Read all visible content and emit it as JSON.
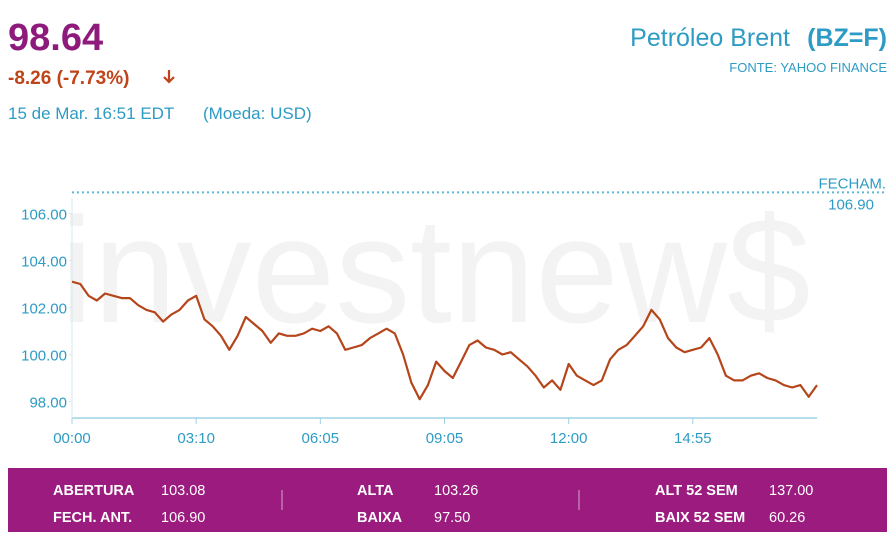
{
  "header": {
    "price": "98.64",
    "change": "-8.26 (-7.73%)",
    "date": "15 de Mar. 16:51 EDT",
    "currency": "(Moeda: USD)",
    "name": "Petróleo Brent",
    "ticker": "(BZ=F)",
    "source": "FONTE: YAHOO FINANCE"
  },
  "watermark": "investnew$",
  "chart_data": {
    "type": "line",
    "categories": [
      "00:00",
      null,
      null,
      null,
      null,
      null,
      null,
      null,
      null,
      null,
      null,
      null,
      null,
      null,
      null,
      "03:10",
      null,
      null,
      null,
      null,
      null,
      null,
      null,
      null,
      null,
      null,
      null,
      null,
      null,
      null,
      "06:05",
      null,
      null,
      null,
      null,
      null,
      null,
      null,
      null,
      null,
      null,
      null,
      null,
      null,
      null,
      "09:05",
      null,
      null,
      null,
      null,
      null,
      null,
      null,
      null,
      null,
      null,
      null,
      null,
      null,
      null,
      "12:00",
      null,
      null,
      null,
      null,
      null,
      null,
      null,
      null,
      null,
      null,
      null,
      null,
      null,
      null,
      "14:55",
      null,
      null,
      null,
      null,
      null,
      null,
      null,
      null,
      null,
      null,
      null,
      null,
      null,
      null,
      null
    ],
    "series": [
      {
        "color": "#b5451b",
        "values": [
          103.1,
          103.0,
          102.5,
          102.3,
          102.6,
          102.5,
          102.4,
          102.4,
          102.1,
          101.9,
          101.8,
          101.4,
          101.7,
          101.9,
          102.3,
          102.5,
          101.5,
          101.2,
          100.8,
          100.2,
          100.8,
          101.6,
          101.3,
          101.0,
          100.5,
          100.9,
          100.8,
          100.8,
          100.9,
          101.1,
          101.0,
          101.2,
          100.9,
          100.2,
          100.3,
          100.4,
          100.7,
          100.9,
          101.1,
          100.9,
          100.0,
          98.8,
          98.1,
          98.7,
          99.7,
          99.3,
          99.0,
          99.7,
          100.4,
          100.6,
          100.3,
          100.2,
          100.0,
          100.1,
          99.8,
          99.5,
          99.1,
          98.6,
          98.9,
          98.5,
          99.6,
          99.1,
          98.9,
          98.7,
          98.9,
          99.8,
          100.2,
          100.4,
          100.8,
          101.2,
          101.9,
          101.5,
          100.7,
          100.3,
          100.1,
          100.2,
          100.3,
          100.7,
          100.0,
          99.1,
          98.9,
          98.9,
          99.1,
          99.2,
          99.0,
          98.9,
          98.7,
          98.6,
          98.7,
          98.2,
          98.7
        ]
      }
    ],
    "ylim": [
      97.3,
      107.5
    ],
    "yticks": [
      {
        "value": 98,
        "label": "98.00"
      },
      {
        "value": 100,
        "label": "100.00"
      },
      {
        "value": 102,
        "label": "102.00"
      },
      {
        "value": 104,
        "label": "104.00"
      },
      {
        "value": 106,
        "label": "106.00"
      }
    ],
    "grid": false,
    "reference": {
      "label": "FECHAM.",
      "value": 106.9,
      "value_label": "106.90"
    }
  },
  "stats": [
    [
      {
        "label": "ABERTURA",
        "value": "103.08"
      },
      {
        "label": "FECH. ANT.",
        "value": "106.90"
      }
    ],
    [
      {
        "label": "ALTA",
        "value": "103.26"
      },
      {
        "label": "BAIXA",
        "value": "97.50"
      }
    ],
    [
      {
        "label": "ALT 52 SEM",
        "value": "137.00"
      },
      {
        "label": "BAIX 52 SEM",
        "value": "60.26"
      }
    ]
  ]
}
